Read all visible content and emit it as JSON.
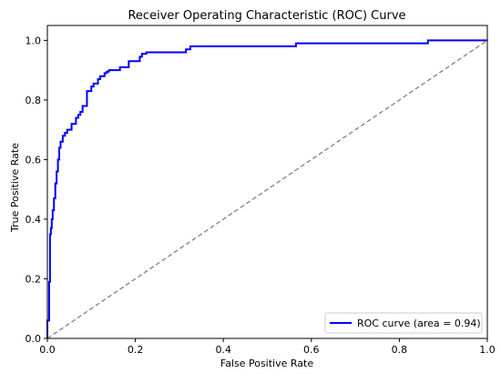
{
  "chart_data": {
    "type": "line",
    "title": "Receiver Operating Characteristic (ROC) Curve",
    "xlabel": "False Positive Rate",
    "ylabel": "True Positive Rate",
    "xlim": [
      0.0,
      1.0
    ],
    "ylim": [
      0.0,
      1.05
    ],
    "xticks": [
      "0.0",
      "0.2",
      "0.4",
      "0.6",
      "0.8",
      "1.0"
    ],
    "yticks": [
      "0.0",
      "0.2",
      "0.4",
      "0.6",
      "0.8",
      "1.0"
    ],
    "grid": false,
    "legend_position": "lower-right",
    "series": [
      {
        "name": "ROC curve (area = 0.94)",
        "color": "#0000ff",
        "style": "solid",
        "x": [
          0.0,
          0.0,
          0.004,
          0.004,
          0.006,
          0.006,
          0.008,
          0.008,
          0.01,
          0.01,
          0.012,
          0.012,
          0.015,
          0.015,
          0.018,
          0.018,
          0.021,
          0.021,
          0.024,
          0.024,
          0.027,
          0.027,
          0.03,
          0.03,
          0.035,
          0.035,
          0.04,
          0.04,
          0.045,
          0.045,
          0.055,
          0.055,
          0.065,
          0.065,
          0.07,
          0.07,
          0.075,
          0.075,
          0.08,
          0.08,
          0.09,
          0.09,
          0.1,
          0.1,
          0.105,
          0.105,
          0.115,
          0.115,
          0.12,
          0.12,
          0.13,
          0.13,
          0.135,
          0.135,
          0.14,
          0.14,
          0.165,
          0.165,
          0.185,
          0.185,
          0.21,
          0.21,
          0.215,
          0.215,
          0.225,
          0.225,
          0.315,
          0.315,
          0.325,
          0.325,
          0.565,
          0.565,
          0.865,
          0.865,
          1.0
        ],
        "y": [
          0.0,
          0.06,
          0.06,
          0.19,
          0.19,
          0.35,
          0.35,
          0.37,
          0.37,
          0.4,
          0.4,
          0.43,
          0.43,
          0.47,
          0.47,
          0.52,
          0.52,
          0.56,
          0.56,
          0.6,
          0.6,
          0.64,
          0.64,
          0.66,
          0.66,
          0.68,
          0.68,
          0.69,
          0.69,
          0.7,
          0.7,
          0.72,
          0.72,
          0.74,
          0.74,
          0.75,
          0.75,
          0.76,
          0.76,
          0.78,
          0.78,
          0.83,
          0.83,
          0.845,
          0.845,
          0.855,
          0.855,
          0.87,
          0.87,
          0.88,
          0.88,
          0.89,
          0.89,
          0.895,
          0.895,
          0.9,
          0.9,
          0.91,
          0.91,
          0.93,
          0.93,
          0.945,
          0.945,
          0.955,
          0.955,
          0.96,
          0.96,
          0.97,
          0.97,
          0.98,
          0.98,
          0.99,
          0.99,
          1.0,
          1.0
        ]
      },
      {
        "color": "#808080",
        "style": "dashed",
        "x": [
          0.0,
          1.0
        ],
        "y": [
          0.0,
          1.0
        ]
      }
    ]
  }
}
